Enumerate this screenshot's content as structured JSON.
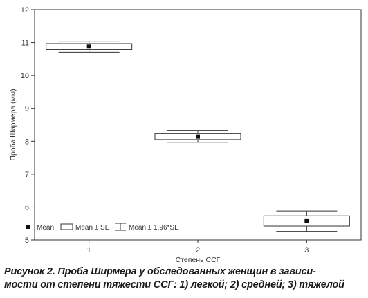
{
  "chart_data": {
    "type": "box",
    "xlabel": "Степень ССГ",
    "ylabel": "Проба Ширмера (мм)",
    "ylim": [
      5,
      12
    ],
    "yticks": [
      5,
      6,
      7,
      8,
      9,
      10,
      11,
      12
    ],
    "categories": [
      "1",
      "2",
      "3"
    ],
    "groups": [
      {
        "category": "1",
        "mean": 10.88,
        "se_low": 10.79,
        "se_high": 10.97,
        "ci_low": 10.71,
        "ci_high": 11.04
      },
      {
        "category": "2",
        "mean": 8.14,
        "se_low": 8.05,
        "se_high": 8.23,
        "ci_low": 7.97,
        "ci_high": 8.33
      },
      {
        "category": "3",
        "mean": 5.57,
        "se_low": 5.42,
        "se_high": 5.73,
        "ci_low": 5.26,
        "ci_high": 5.88
      }
    ],
    "legend": {
      "position": "bottom-left",
      "entries": [
        "Mean",
        "Mean ± SE",
        "Mean ± 1,96*SE"
      ]
    },
    "grid": false
  },
  "caption": {
    "line1": "Рисунок 2. Проба Ширмера у обследованных женщин в зависи-",
    "line2": "мости от степени тяжести ССГ: 1) легкой; 2) средней; 3) тяжелой"
  }
}
